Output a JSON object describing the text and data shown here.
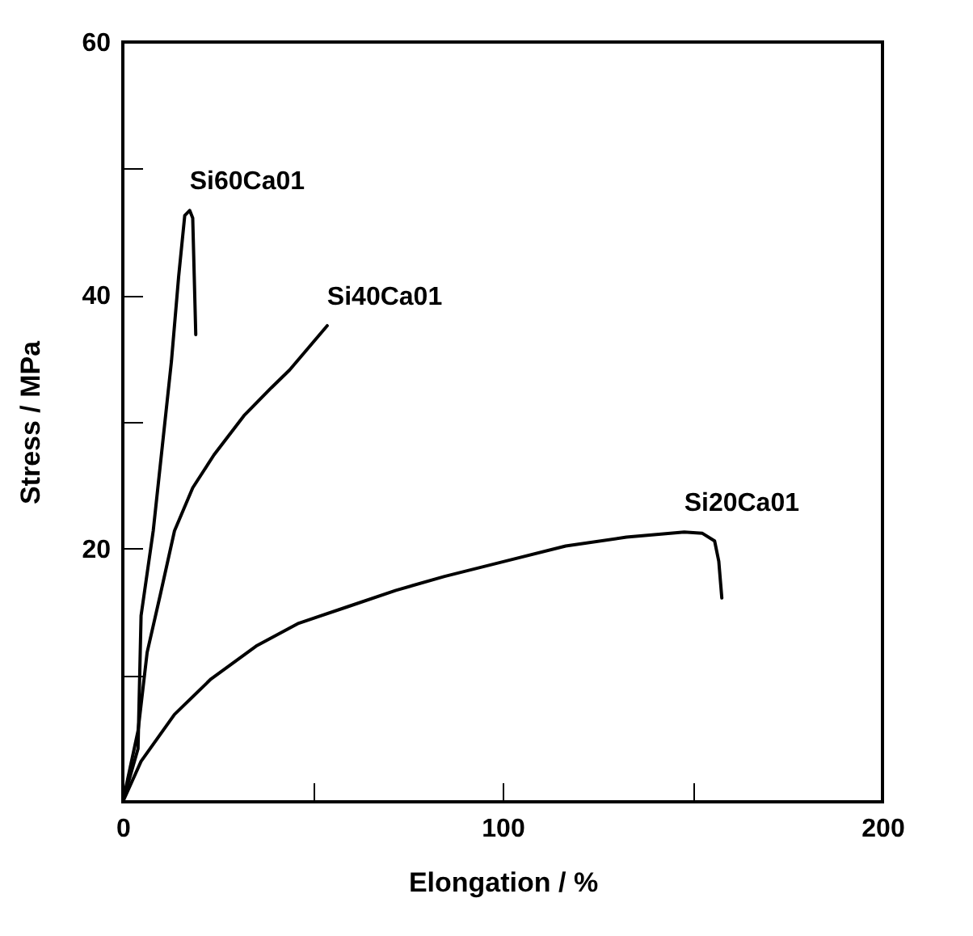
{
  "chart_data": {
    "type": "line",
    "xlabel": "Elongation / %",
    "ylabel": "Stress / MPa",
    "xlim": [
      0,
      200
    ],
    "ylim": [
      0,
      60
    ],
    "xticks": [
      0,
      {
        "value": 50,
        "label": null
      },
      100,
      {
        "value": 150,
        "label": null
      },
      200
    ],
    "yticks": [
      {
        "value": 10,
        "label": null
      },
      20,
      {
        "value": 30,
        "label": null
      },
      40,
      {
        "value": 50,
        "label": null
      },
      60
    ],
    "grid": false,
    "marker": "none",
    "line_style": "solid",
    "series": [
      {
        "name": "Si60Ca01",
        "color": "#000000",
        "x": [
          0,
          4,
          4.8,
          8,
          10.4,
          12.8,
          14.7,
          16.3,
          17.6,
          18.4,
          18.8,
          19.2
        ],
        "values": [
          0,
          4.2,
          14.7,
          21.4,
          28.1,
          34.8,
          41.5,
          46.3,
          46.7,
          46.1,
          41.5,
          36.9
        ]
      },
      {
        "name": "Si40Ca01",
        "color": "#000000",
        "x": [
          0,
          4,
          6.4,
          9.9,
          13.6,
          18.4,
          24,
          31.9,
          39.1,
          43.9,
          53.8
        ],
        "values": [
          0,
          5.6,
          11.8,
          16.4,
          21.4,
          24.8,
          27.4,
          30.5,
          32.7,
          34.1,
          37.6
        ]
      },
      {
        "name": "Si20Ca01",
        "color": "#000000",
        "x": [
          0,
          4.8,
          13.6,
          23.2,
          35.1,
          46.3,
          59.1,
          71.9,
          84.7,
          100.6,
          116.6,
          132.6,
          147.8,
          152.6,
          155.8,
          156.9,
          157.7
        ],
        "values": [
          0,
          3.2,
          6.9,
          9.7,
          12.3,
          14.1,
          15.4,
          16.7,
          17.8,
          19.0,
          20.2,
          20.9,
          21.3,
          21.2,
          20.6,
          19.0,
          16.1
        ]
      }
    ]
  }
}
